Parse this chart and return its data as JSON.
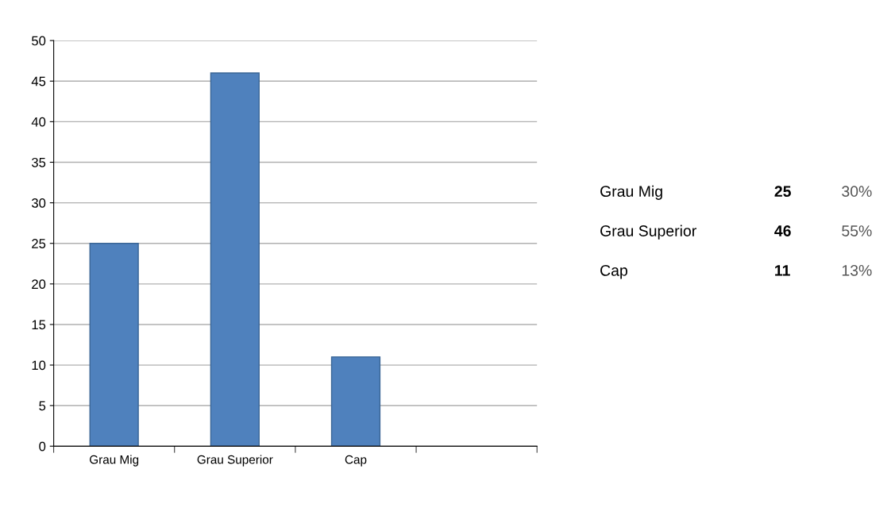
{
  "chart_data": {
    "type": "bar",
    "categories": [
      "Grau Mig",
      "Grau Superior",
      "Cap",
      null
    ],
    "values": [
      25,
      46,
      11,
      null
    ],
    "color": "#4f81bd",
    "ylim": [
      0,
      50
    ],
    "yticks": [
      0,
      5,
      10,
      15,
      20,
      25,
      30,
      35,
      40,
      45,
      50
    ],
    "grid": "y",
    "annotations": [
      "Grau Mig",
      "25",
      "30%",
      "Grau Superior",
      "46",
      "55%",
      "Cap",
      "11",
      "13%"
    ]
  }
}
